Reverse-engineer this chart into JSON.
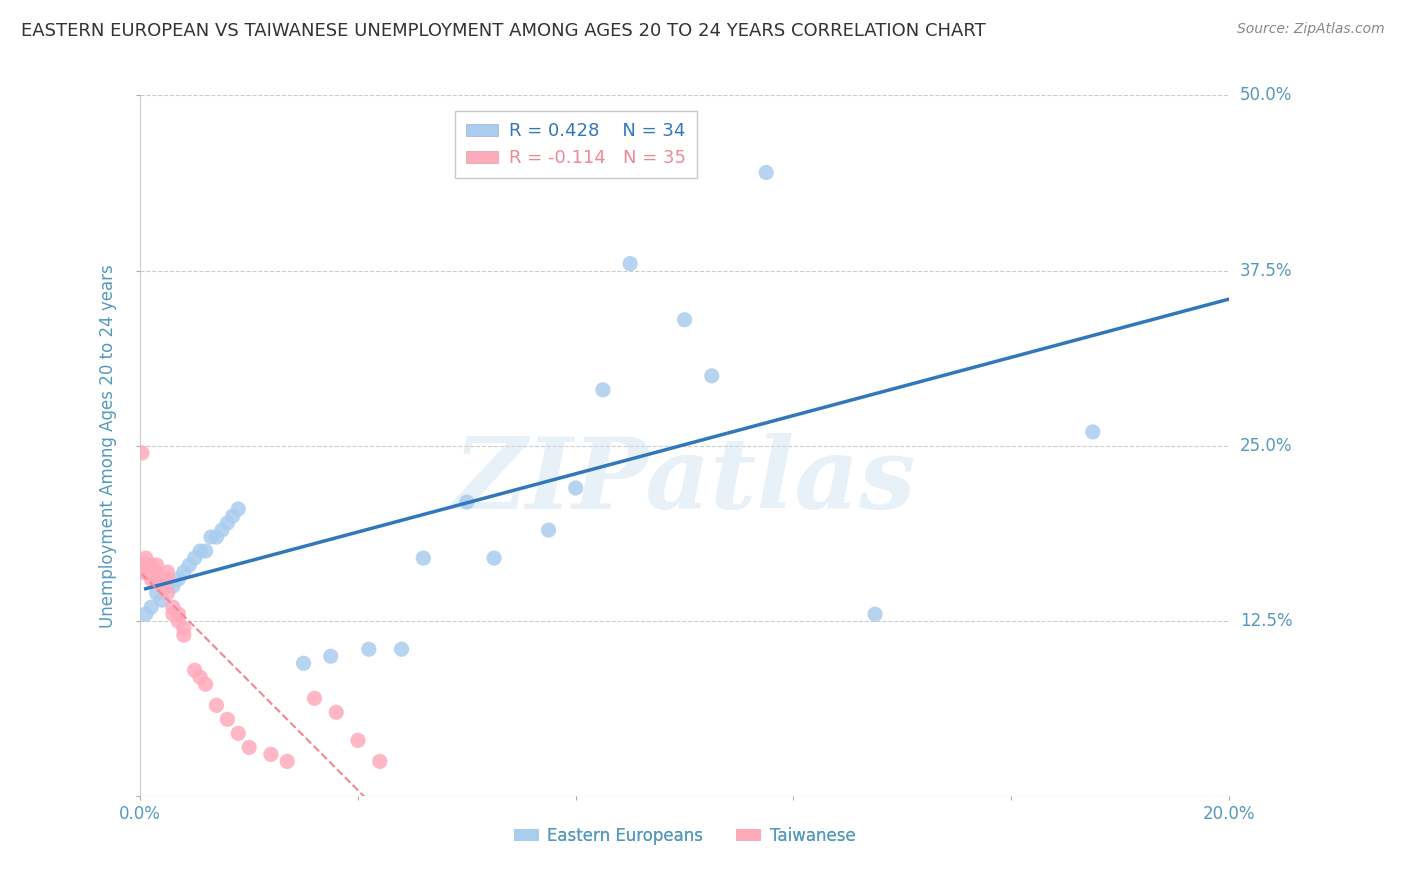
{
  "title": "EASTERN EUROPEAN VS TAIWANESE UNEMPLOYMENT AMONG AGES 20 TO 24 YEARS CORRELATION CHART",
  "source": "Source: ZipAtlas.com",
  "ylabel": "Unemployment Among Ages 20 to 24 years",
  "xlim": [
    0.0,
    0.2
  ],
  "ylim": [
    0.0,
    0.5
  ],
  "yticks": [
    0.0,
    0.125,
    0.25,
    0.375,
    0.5
  ],
  "ytick_labels": [
    "",
    "12.5%",
    "25.0%",
    "37.5%",
    "50.0%"
  ],
  "xticks": [
    0.0,
    0.04,
    0.08,
    0.12,
    0.16,
    0.2
  ],
  "xtick_labels": [
    "0.0%",
    "",
    "",
    "",
    "",
    "20.0%"
  ],
  "blue_R": 0.428,
  "blue_N": 34,
  "pink_R": -0.114,
  "pink_N": 35,
  "blue_color": "#aaccee",
  "pink_color": "#ffaabb",
  "blue_line_color": "#3377bb",
  "pink_line_color": "#ee8899",
  "background_color": "#ffffff",
  "grid_color": "#cccccc",
  "title_color": "#333333",
  "axis_label_color": "#5599bb",
  "tick_color": "#5599bb",
  "legend_label_blue": "Eastern Europeans",
  "legend_label_pink": "Taiwanese",
  "blue_points_x": [
    0.001,
    0.002,
    0.003,
    0.004,
    0.005,
    0.006,
    0.007,
    0.008,
    0.009,
    0.01,
    0.011,
    0.012,
    0.013,
    0.014,
    0.015,
    0.016,
    0.017,
    0.018,
    0.03,
    0.035,
    0.042,
    0.048,
    0.052,
    0.06,
    0.065,
    0.075,
    0.08,
    0.085,
    0.09,
    0.1,
    0.105,
    0.115,
    0.135,
    0.175
  ],
  "blue_points_y": [
    0.13,
    0.135,
    0.145,
    0.14,
    0.15,
    0.15,
    0.155,
    0.16,
    0.165,
    0.17,
    0.175,
    0.175,
    0.185,
    0.185,
    0.19,
    0.195,
    0.2,
    0.205,
    0.095,
    0.1,
    0.105,
    0.105,
    0.17,
    0.21,
    0.17,
    0.19,
    0.22,
    0.29,
    0.38,
    0.34,
    0.3,
    0.445,
    0.13,
    0.26
  ],
  "pink_points_x": [
    0.0003,
    0.0005,
    0.001,
    0.001,
    0.001,
    0.002,
    0.002,
    0.002,
    0.003,
    0.003,
    0.003,
    0.004,
    0.004,
    0.005,
    0.005,
    0.005,
    0.006,
    0.006,
    0.007,
    0.007,
    0.008,
    0.008,
    0.01,
    0.011,
    0.012,
    0.014,
    0.016,
    0.018,
    0.02,
    0.024,
    0.027,
    0.032,
    0.036,
    0.04,
    0.044
  ],
  "pink_points_y": [
    0.245,
    0.16,
    0.16,
    0.165,
    0.17,
    0.155,
    0.16,
    0.165,
    0.155,
    0.16,
    0.165,
    0.15,
    0.155,
    0.145,
    0.155,
    0.16,
    0.13,
    0.135,
    0.125,
    0.13,
    0.115,
    0.12,
    0.09,
    0.085,
    0.08,
    0.065,
    0.055,
    0.045,
    0.035,
    0.03,
    0.025,
    0.07,
    0.06,
    0.04,
    0.025
  ],
  "marker_size": 120,
  "watermark_text": "ZIPatlas",
  "watermark_color": "#ccddeeff",
  "watermark_alpha": 0.6
}
